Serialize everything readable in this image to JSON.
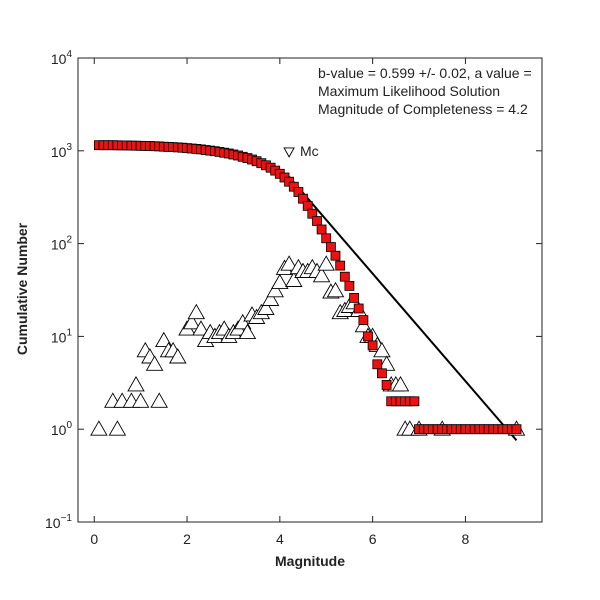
{
  "chart_data": {
    "type": "scatter",
    "title": "",
    "xlabel": "Magnitude",
    "ylabel": "Cumulative Number",
    "xlim": [
      -0.35,
      9.65
    ],
    "ylim_log10": [
      -1,
      4
    ],
    "y_scale": "log",
    "grid": false,
    "x_ticks": [
      {
        "value": 0,
        "label": "0"
      },
      {
        "value": 2,
        "label": "2"
      },
      {
        "value": 4,
        "label": "4"
      },
      {
        "value": 6,
        "label": "6"
      },
      {
        "value": 8,
        "label": "8"
      }
    ],
    "y_ticks": [
      {
        "exp": -1,
        "label": "10",
        "sup": "−1"
      },
      {
        "exp": 0,
        "label": "10",
        "sup": "0"
      },
      {
        "exp": 1,
        "label": "10",
        "sup": "1"
      },
      {
        "exp": 2,
        "label": "10",
        "sup": "2"
      },
      {
        "exp": 3,
        "label": "10",
        "sup": "3"
      },
      {
        "exp": 4,
        "label": "10",
        "sup": "4"
      }
    ],
    "annotations": [
      "b-value = 0.599 +/- 0.02,  a value = ",
      "Maximum Likelihood Solution",
      "Magnitude of Completeness = 4.2"
    ],
    "mc_label": "Mc",
    "mc_point": {
      "x": 4.2,
      "y": 950
    },
    "colors": {
      "cumulative": "#ee1111",
      "noncumulative": "#ffffff",
      "fit": "#000000"
    },
    "series": [
      {
        "marker": "square",
        "x": [
          0.1,
          0.2,
          0.3,
          0.4,
          0.5,
          0.6,
          0.7,
          0.8,
          0.9,
          1.0,
          1.1,
          1.2,
          1.3,
          1.4,
          1.5,
          1.6,
          1.7,
          1.8,
          1.9,
          2.0,
          2.1,
          2.2,
          2.3,
          2.4,
          2.5,
          2.6,
          2.7,
          2.8,
          2.9,
          3.0,
          3.1,
          3.2,
          3.3,
          3.4,
          3.5,
          3.6,
          3.7,
          3.8,
          3.9,
          4.0,
          4.1,
          4.2,
          4.3,
          4.4,
          4.5,
          4.6,
          4.7,
          4.8,
          4.9,
          5.0,
          5.1,
          5.2,
          5.3,
          5.4,
          5.5,
          5.6,
          5.7,
          5.8,
          5.9,
          6.0,
          6.1,
          6.2,
          6.3,
          6.4,
          6.5,
          6.6,
          6.7,
          6.8,
          6.9,
          7.0,
          7.1,
          7.2,
          7.3,
          7.4,
          7.5,
          7.6,
          7.7,
          7.8,
          7.9,
          8.0,
          8.1,
          8.2,
          8.3,
          8.4,
          8.5,
          8.6,
          8.7,
          8.8,
          8.9,
          9.0,
          9.1
        ],
        "y": [
          1150,
          1150,
          1150,
          1148,
          1146,
          1144,
          1142,
          1139,
          1136,
          1133,
          1130,
          1126,
          1120,
          1115,
          1108,
          1102,
          1095,
          1088,
          1080,
          1070,
          1060,
          1048,
          1035,
          1020,
          1005,
          990,
          972,
          955,
          935,
          912,
          890,
          862,
          835,
          805,
          772,
          735,
          698,
          658,
          612,
          565,
          515,
          465,
          410,
          360,
          305,
          255,
          210,
          175,
          142,
          114,
          92,
          74,
          58,
          44,
          35,
          26,
          20,
          15,
          10,
          8,
          5,
          4,
          3,
          2,
          2,
          2,
          2,
          2,
          2,
          1,
          1,
          1,
          1,
          1,
          1,
          1,
          1,
          1,
          1,
          1,
          1,
          1,
          1,
          1,
          1,
          1,
          1,
          1,
          1,
          1,
          1
        ]
      },
      {
        "marker": "triangle",
        "x": [
          0.1,
          0.5,
          0.4,
          0.6,
          0.8,
          0.9,
          1.0,
          1.1,
          1.2,
          1.3,
          1.4,
          1.5,
          1.6,
          1.7,
          1.8,
          2.0,
          2.1,
          2.2,
          2.3,
          2.4,
          2.5,
          2.6,
          2.7,
          2.8,
          2.9,
          3.0,
          3.1,
          3.2,
          3.3,
          3.4,
          3.5,
          3.6,
          3.7,
          3.8,
          3.9,
          4.0,
          4.1,
          4.2,
          4.3,
          4.4,
          4.5,
          4.6,
          4.7,
          4.8,
          4.9,
          5.0,
          5.1,
          5.2,
          5.3,
          5.4,
          5.5,
          5.6,
          5.7,
          5.8,
          5.9,
          6.0,
          6.1,
          6.2,
          6.3,
          6.4,
          6.5,
          6.6,
          6.7,
          6.8,
          7.0,
          7.5,
          9.1
        ],
        "y": [
          1,
          1,
          2,
          2,
          2,
          3,
          2,
          7,
          6,
          5,
          2,
          9,
          7,
          7,
          6,
          12,
          14,
          18,
          12,
          9,
          11,
          10,
          11,
          12,
          10,
          11,
          12,
          14,
          11,
          17,
          16,
          18,
          20,
          25,
          31,
          38,
          54,
          60,
          40,
          55,
          50,
          50,
          55,
          50,
          45,
          60,
          30,
          31,
          18,
          19,
          21,
          23,
          19,
          13,
          10,
          10,
          8,
          7,
          5,
          3,
          3,
          3,
          1,
          1,
          1,
          1,
          1
        ]
      }
    ],
    "fit_line": {
      "x": [
        4.2,
        9.1
      ],
      "y": [
        525,
        0.76
      ]
    }
  }
}
